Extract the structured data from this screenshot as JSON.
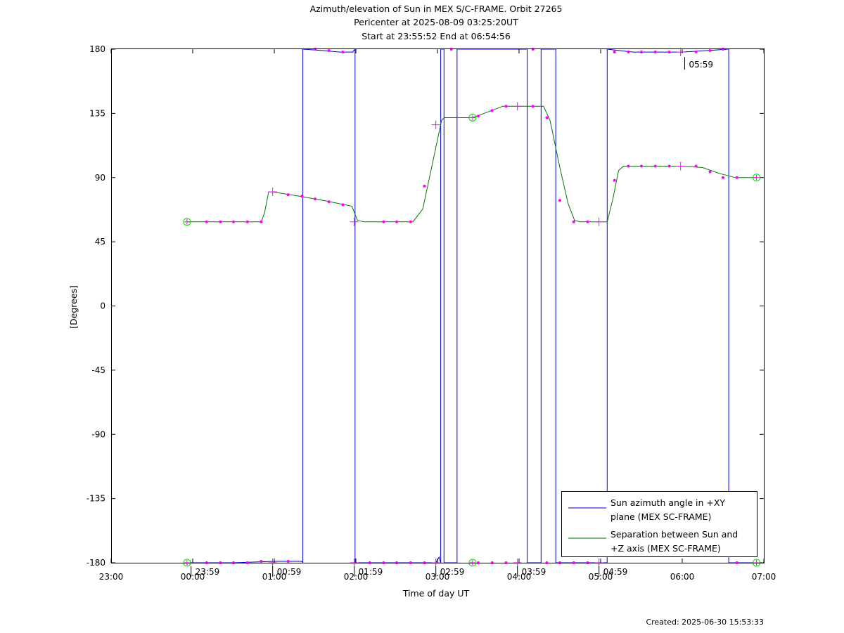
{
  "chart_data": {
    "type": "line",
    "title": [
      "Azimuth/elevation of Sun in MEX S/C-FRAME.  Orbit 27265",
      "Pericenter at 2025-08-09 03:25:20UT",
      "Start at 23:55:52 End at 06:54:56"
    ],
    "xlabel": "Time of day UT",
    "ylabel": "[Degrees]",
    "xlim": [
      -1,
      7
    ],
    "ylim": [
      -180,
      180
    ],
    "x_unit": "hours of day UT (negative = previous day)",
    "xticks": [
      -1,
      0,
      1,
      2,
      3,
      4,
      5,
      6,
      7
    ],
    "xtick_labels": [
      "23:00",
      "00:00",
      "01:00",
      "02:00",
      "03:00",
      "04:00",
      "05:00",
      "06:00",
      "07:00"
    ],
    "yticks": [
      180,
      135,
      90,
      45,
      0,
      -45,
      -90,
      -135,
      -180
    ],
    "ytick_labels": [
      "180",
      "135",
      "90",
      "45",
      "0",
      "-45",
      "-90",
      "-135",
      "-180"
    ],
    "created": "Created: 2025-06-30 15:53:33",
    "legend": {
      "placement": "bottom-right",
      "entries": [
        {
          "line1": "Sun azimuth angle in +XY",
          "line2": "plane (MEX SC-FRAME)",
          "color": "#0000cc"
        },
        {
          "line1": "Separation between Sun and",
          "line2": "+Z axis (MEX SC-FRAME)",
          "color": "#007700"
        }
      ]
    },
    "annotations": [
      {
        "text": "23:59",
        "x": -0.02,
        "y": -180
      },
      {
        "text": "00:59",
        "x": 0.98,
        "y": -180
      },
      {
        "text": "01:59",
        "x": 1.98,
        "y": -180
      },
      {
        "text": "02:59",
        "x": 2.98,
        "y": -180
      },
      {
        "text": "03:59",
        "x": 3.98,
        "y": -180
      },
      {
        "text": "04:59",
        "x": 4.98,
        "y": -180
      },
      {
        "text": "05:59",
        "x": 6.03,
        "y": 177
      }
    ],
    "series": [
      {
        "name": "Sun azimuth angle in +XY plane (MEX SC-FRAME)",
        "color": "#0000cc",
        "segments": [
          [
            [
              -0.07,
              -180
            ],
            [
              0.5,
              -180
            ],
            [
              1.0,
              -179
            ],
            [
              1.34,
              -179
            ],
            [
              1.35,
              -180
            ]
          ],
          [
            [
              1.35,
              180
            ],
            [
              1.6,
              179
            ],
            [
              1.8,
              178
            ],
            [
              1.96,
              178
            ],
            [
              1.99,
              180
            ]
          ],
          [
            [
              1.99,
              -180
            ],
            [
              2.5,
              -180
            ],
            [
              2.98,
              -180
            ],
            [
              3.02,
              -176
            ],
            [
              3.04,
              -180
            ]
          ],
          [
            [
              3.04,
              180
            ],
            [
              3.08,
              180
            ]
          ],
          [
            [
              3.08,
              -180
            ],
            [
              3.24,
              -180
            ]
          ],
          [
            [
              3.24,
              180
            ],
            [
              4.1,
              180
            ]
          ],
          [
            [
              4.1,
              -180
            ],
            [
              4.27,
              -180
            ]
          ],
          [
            [
              4.27,
              180
            ],
            [
              4.45,
              180
            ]
          ],
          [
            [
              4.45,
              -180
            ],
            [
              5.08,
              -180
            ]
          ],
          [
            [
              5.08,
              180
            ],
            [
              5.4,
              178
            ],
            [
              6.0,
              178
            ],
            [
              6.3,
              179
            ],
            [
              6.57,
              180
            ]
          ],
          [
            [
              6.57,
              -180
            ],
            [
              6.91,
              -180
            ]
          ]
        ]
      },
      {
        "name": "Separation between Sun and +Z axis (MEX SC-FRAME)",
        "color": "#007700",
        "segments": [
          [
            [
              -0.07,
              59
            ],
            [
              0.84,
              59
            ],
            [
              0.88,
              65
            ],
            [
              0.93,
              80
            ],
            [
              0.98,
              80
            ],
            [
              1.3,
              77
            ],
            [
              1.6,
              74
            ],
            [
              1.95,
              70
            ],
            [
              2.02,
              60
            ],
            [
              2.1,
              59
            ],
            [
              2.7,
              59
            ],
            [
              2.82,
              68
            ],
            [
              2.95,
              103
            ],
            [
              3.05,
              130
            ],
            [
              3.08,
              132
            ],
            [
              3.43,
              132
            ],
            [
              3.62,
              136
            ],
            [
              3.8,
              140
            ],
            [
              4.3,
              140
            ],
            [
              4.38,
              130
            ],
            [
              4.5,
              97
            ],
            [
              4.6,
              72
            ],
            [
              4.68,
              60
            ],
            [
              4.75,
              59
            ],
            [
              5.08,
              59
            ],
            [
              5.15,
              75
            ],
            [
              5.22,
              95
            ],
            [
              5.28,
              98
            ],
            [
              6.0,
              98
            ],
            [
              6.25,
              97
            ],
            [
              6.45,
              93
            ],
            [
              6.65,
              90
            ],
            [
              6.91,
              90
            ]
          ]
        ]
      }
    ],
    "markers": {
      "color": "#ff00ff",
      "circle_color": "#00dd00",
      "dots": [
        [
          0.17,
          59
        ],
        [
          0.34,
          59
        ],
        [
          0.5,
          59
        ],
        [
          0.67,
          59
        ],
        [
          0.84,
          59
        ],
        [
          1.17,
          78
        ],
        [
          1.34,
          77
        ],
        [
          1.5,
          75
        ],
        [
          1.67,
          73
        ],
        [
          1.84,
          71
        ],
        [
          2.34,
          59
        ],
        [
          2.5,
          59
        ],
        [
          2.67,
          59
        ],
        [
          2.84,
          84
        ],
        [
          3.5,
          133
        ],
        [
          3.67,
          137
        ],
        [
          3.84,
          140
        ],
        [
          4.17,
          140
        ],
        [
          4.34,
          132
        ],
        [
          4.5,
          74
        ],
        [
          4.67,
          59
        ],
        [
          4.84,
          59
        ],
        [
          5.17,
          88
        ],
        [
          5.34,
          98
        ],
        [
          5.5,
          98
        ],
        [
          5.67,
          98
        ],
        [
          5.84,
          98
        ],
        [
          6.17,
          98
        ],
        [
          6.34,
          94
        ],
        [
          6.5,
          90
        ],
        [
          6.67,
          90
        ],
        [
          0.17,
          -180
        ],
        [
          0.34,
          -180
        ],
        [
          0.5,
          -180
        ],
        [
          0.67,
          -180
        ],
        [
          0.84,
          -179
        ],
        [
          1.17,
          -179
        ],
        [
          1.5,
          180
        ],
        [
          1.67,
          179
        ],
        [
          1.84,
          178
        ],
        [
          2.17,
          -180
        ],
        [
          2.34,
          -180
        ],
        [
          2.5,
          -180
        ],
        [
          2.67,
          -180
        ],
        [
          2.84,
          -180
        ],
        [
          3.17,
          180
        ],
        [
          3.5,
          -180
        ],
        [
          3.67,
          -180
        ],
        [
          3.84,
          -180
        ],
        [
          4.17,
          180
        ],
        [
          4.34,
          -180
        ],
        [
          4.5,
          -180
        ],
        [
          4.67,
          -180
        ],
        [
          4.84,
          -180
        ],
        [
          5.17,
          178
        ],
        [
          5.34,
          178
        ],
        [
          5.5,
          178
        ],
        [
          5.67,
          178
        ],
        [
          5.84,
          178
        ],
        [
          6.17,
          178
        ],
        [
          6.34,
          179
        ],
        [
          6.5,
          180
        ],
        [
          6.67,
          -180
        ]
      ],
      "crosses": [
        [
          0.98,
          80
        ],
        [
          1.98,
          59
        ],
        [
          2.98,
          127
        ],
        [
          3.98,
          140
        ],
        [
          4.98,
          59
        ],
        [
          5.98,
          98
        ],
        [
          0.98,
          -180
        ],
        [
          1.98,
          -180
        ],
        [
          2.98,
          -180
        ],
        [
          3.98,
          -180
        ],
        [
          4.98,
          -180
        ],
        [
          5.98,
          178
        ]
      ],
      "circles": [
        [
          -0.07,
          59
        ],
        [
          3.43,
          132
        ],
        [
          6.91,
          90
        ],
        [
          -0.07,
          -180
        ],
        [
          3.43,
          -180
        ],
        [
          6.91,
          -180
        ]
      ]
    }
  }
}
